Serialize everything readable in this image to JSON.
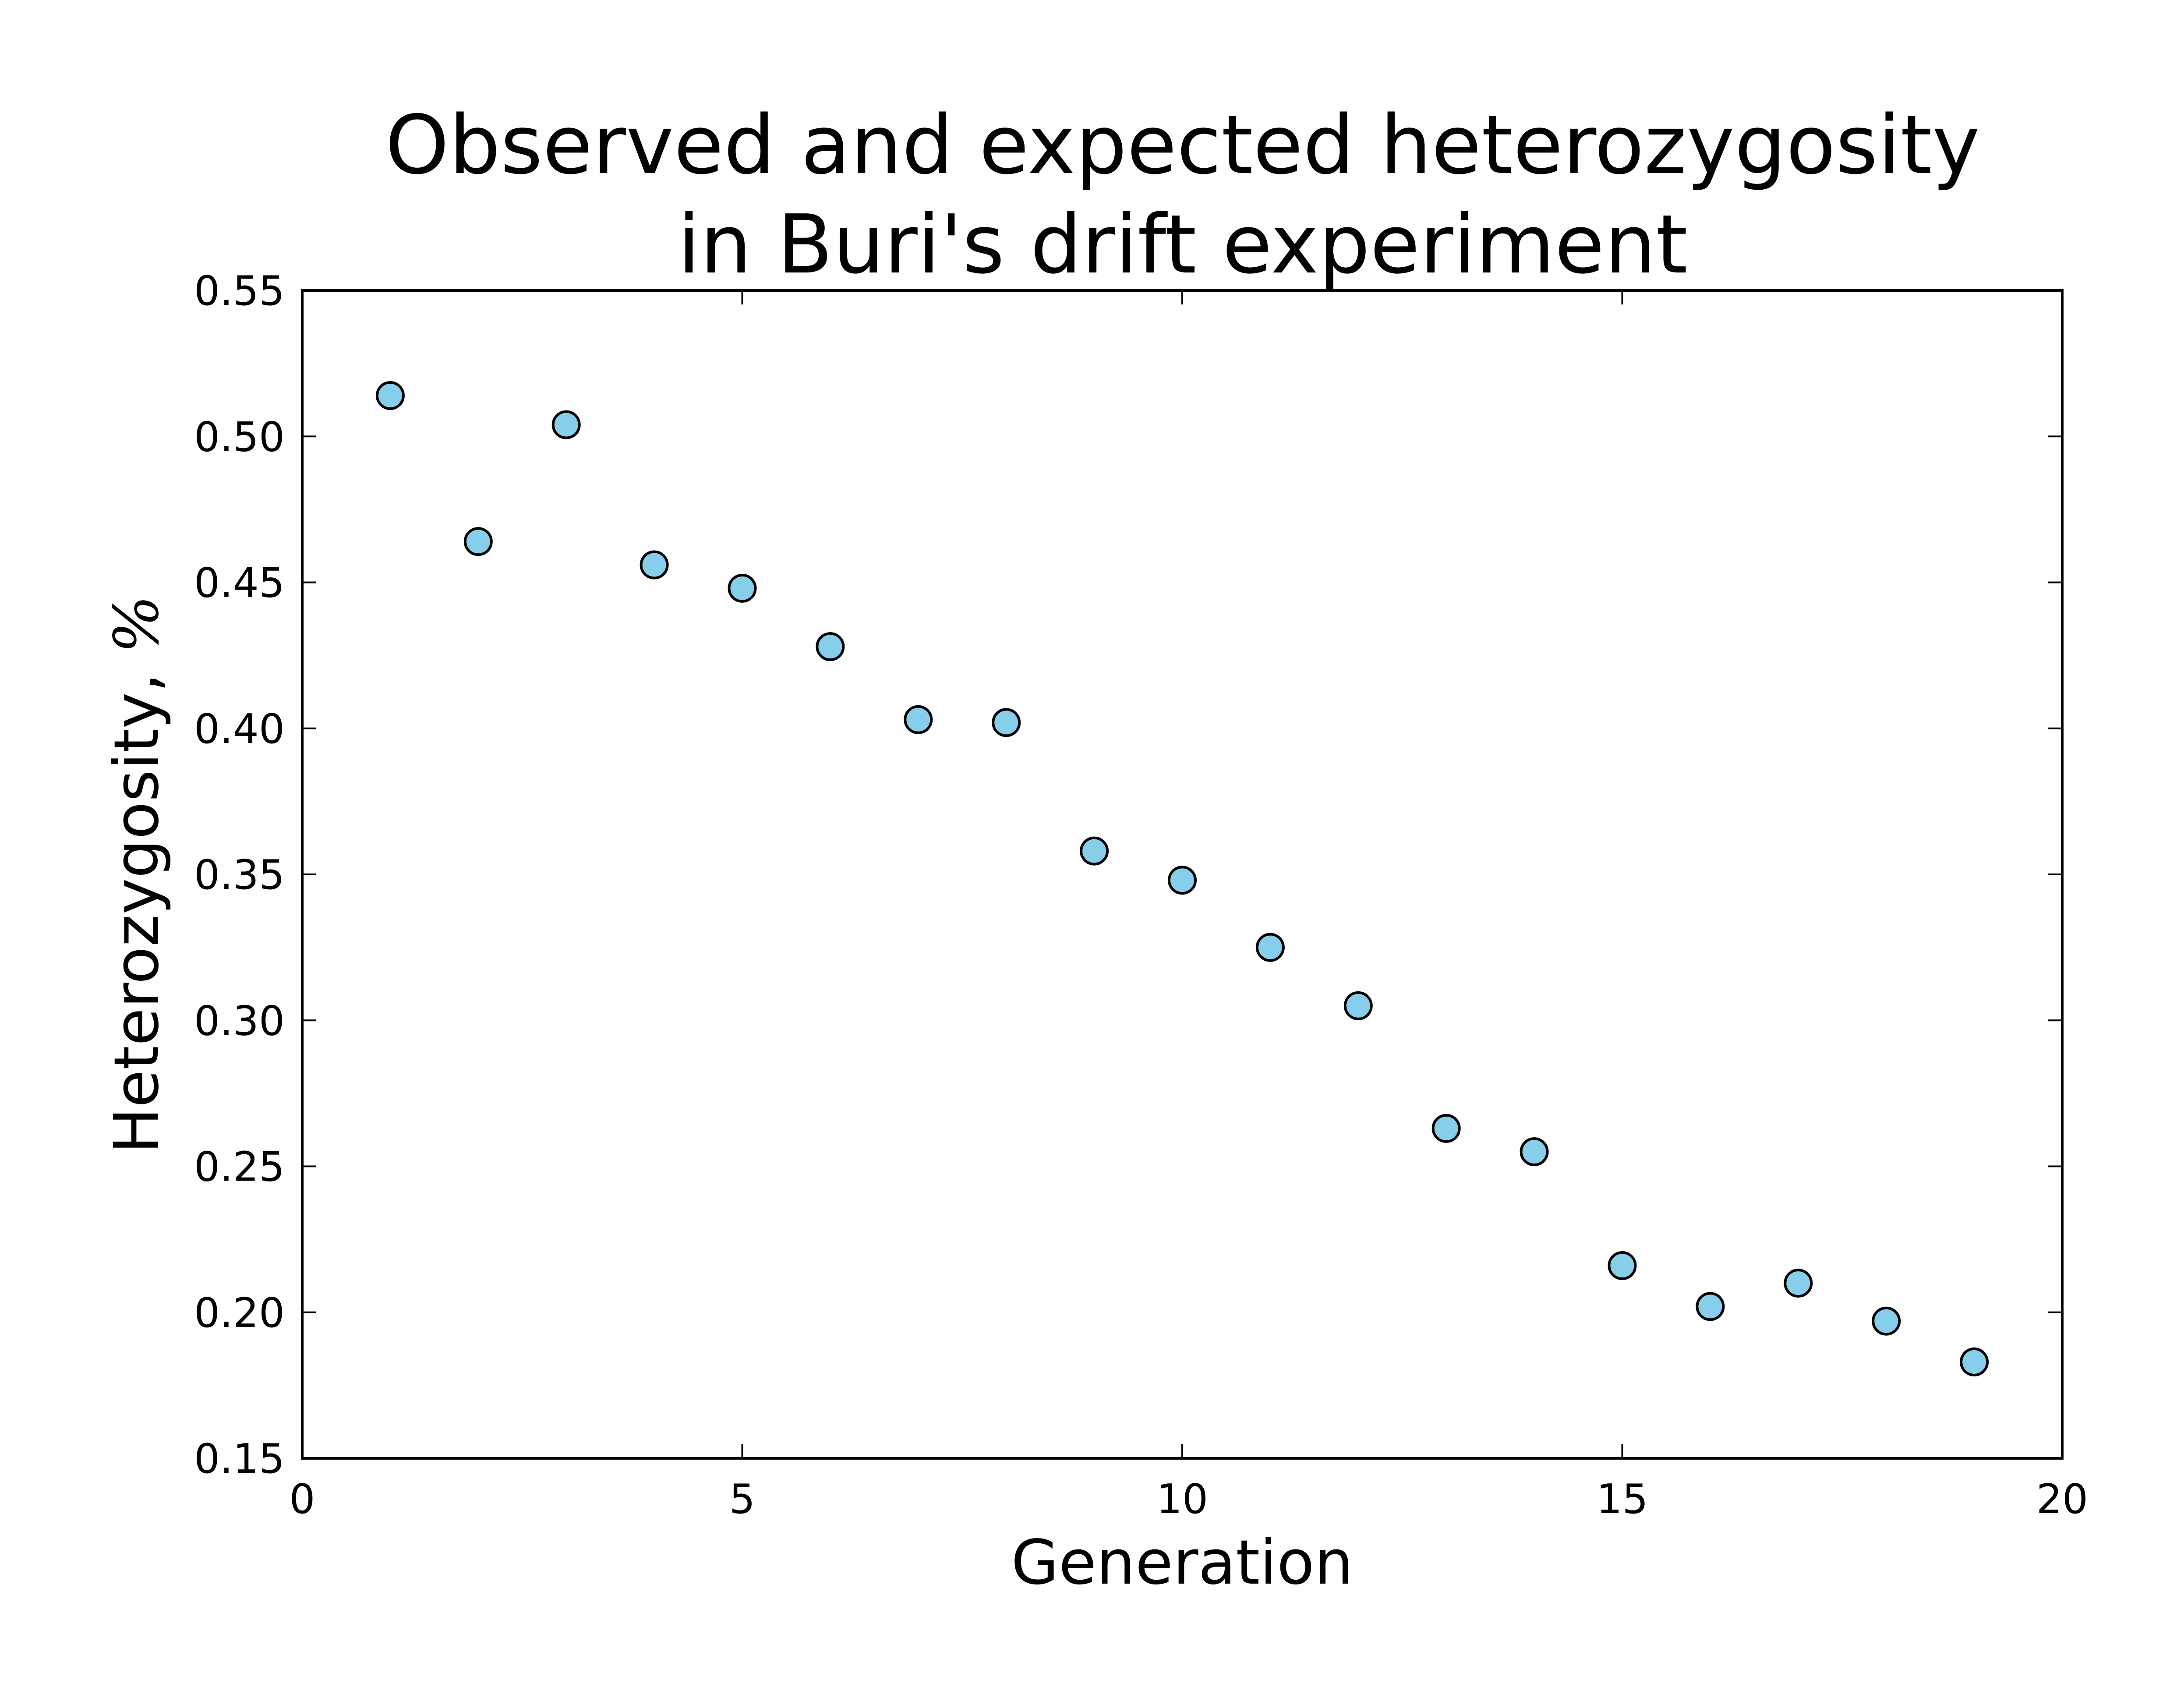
{
  "chart_data": {
    "type": "scatter",
    "title_lines": [
      "Observed and expected heterozygosity",
      "in Buri's drift experiment"
    ],
    "xlabel": "Generation",
    "ylabel_text": "Heterozygosity, ",
    "ylabel_unit": "%",
    "xlim": [
      0,
      20
    ],
    "ylim": [
      0.15,
      0.55
    ],
    "xticks": [
      0,
      5,
      10,
      15,
      20
    ],
    "xtick_labels": [
      "0",
      "5",
      "10",
      "15",
      "20"
    ],
    "yticks": [
      0.15,
      0.2,
      0.25,
      0.3,
      0.35,
      0.4,
      0.45,
      0.5,
      0.55
    ],
    "ytick_labels": [
      "0.15",
      "0.20",
      "0.25",
      "0.30",
      "0.35",
      "0.40",
      "0.45",
      "0.50",
      "0.55"
    ],
    "grid": false,
    "marker_color": "#87ceeb",
    "marker_edge_color": "#000000",
    "x": [
      1,
      2,
      3,
      4,
      5,
      6,
      7,
      8,
      9,
      10,
      11,
      12,
      13,
      14,
      15,
      16,
      17,
      18,
      19
    ],
    "y": [
      0.514,
      0.464,
      0.504,
      0.456,
      0.448,
      0.428,
      0.403,
      0.402,
      0.358,
      0.348,
      0.325,
      0.305,
      0.263,
      0.255,
      0.216,
      0.202,
      0.21,
      0.197,
      0.183
    ]
  }
}
